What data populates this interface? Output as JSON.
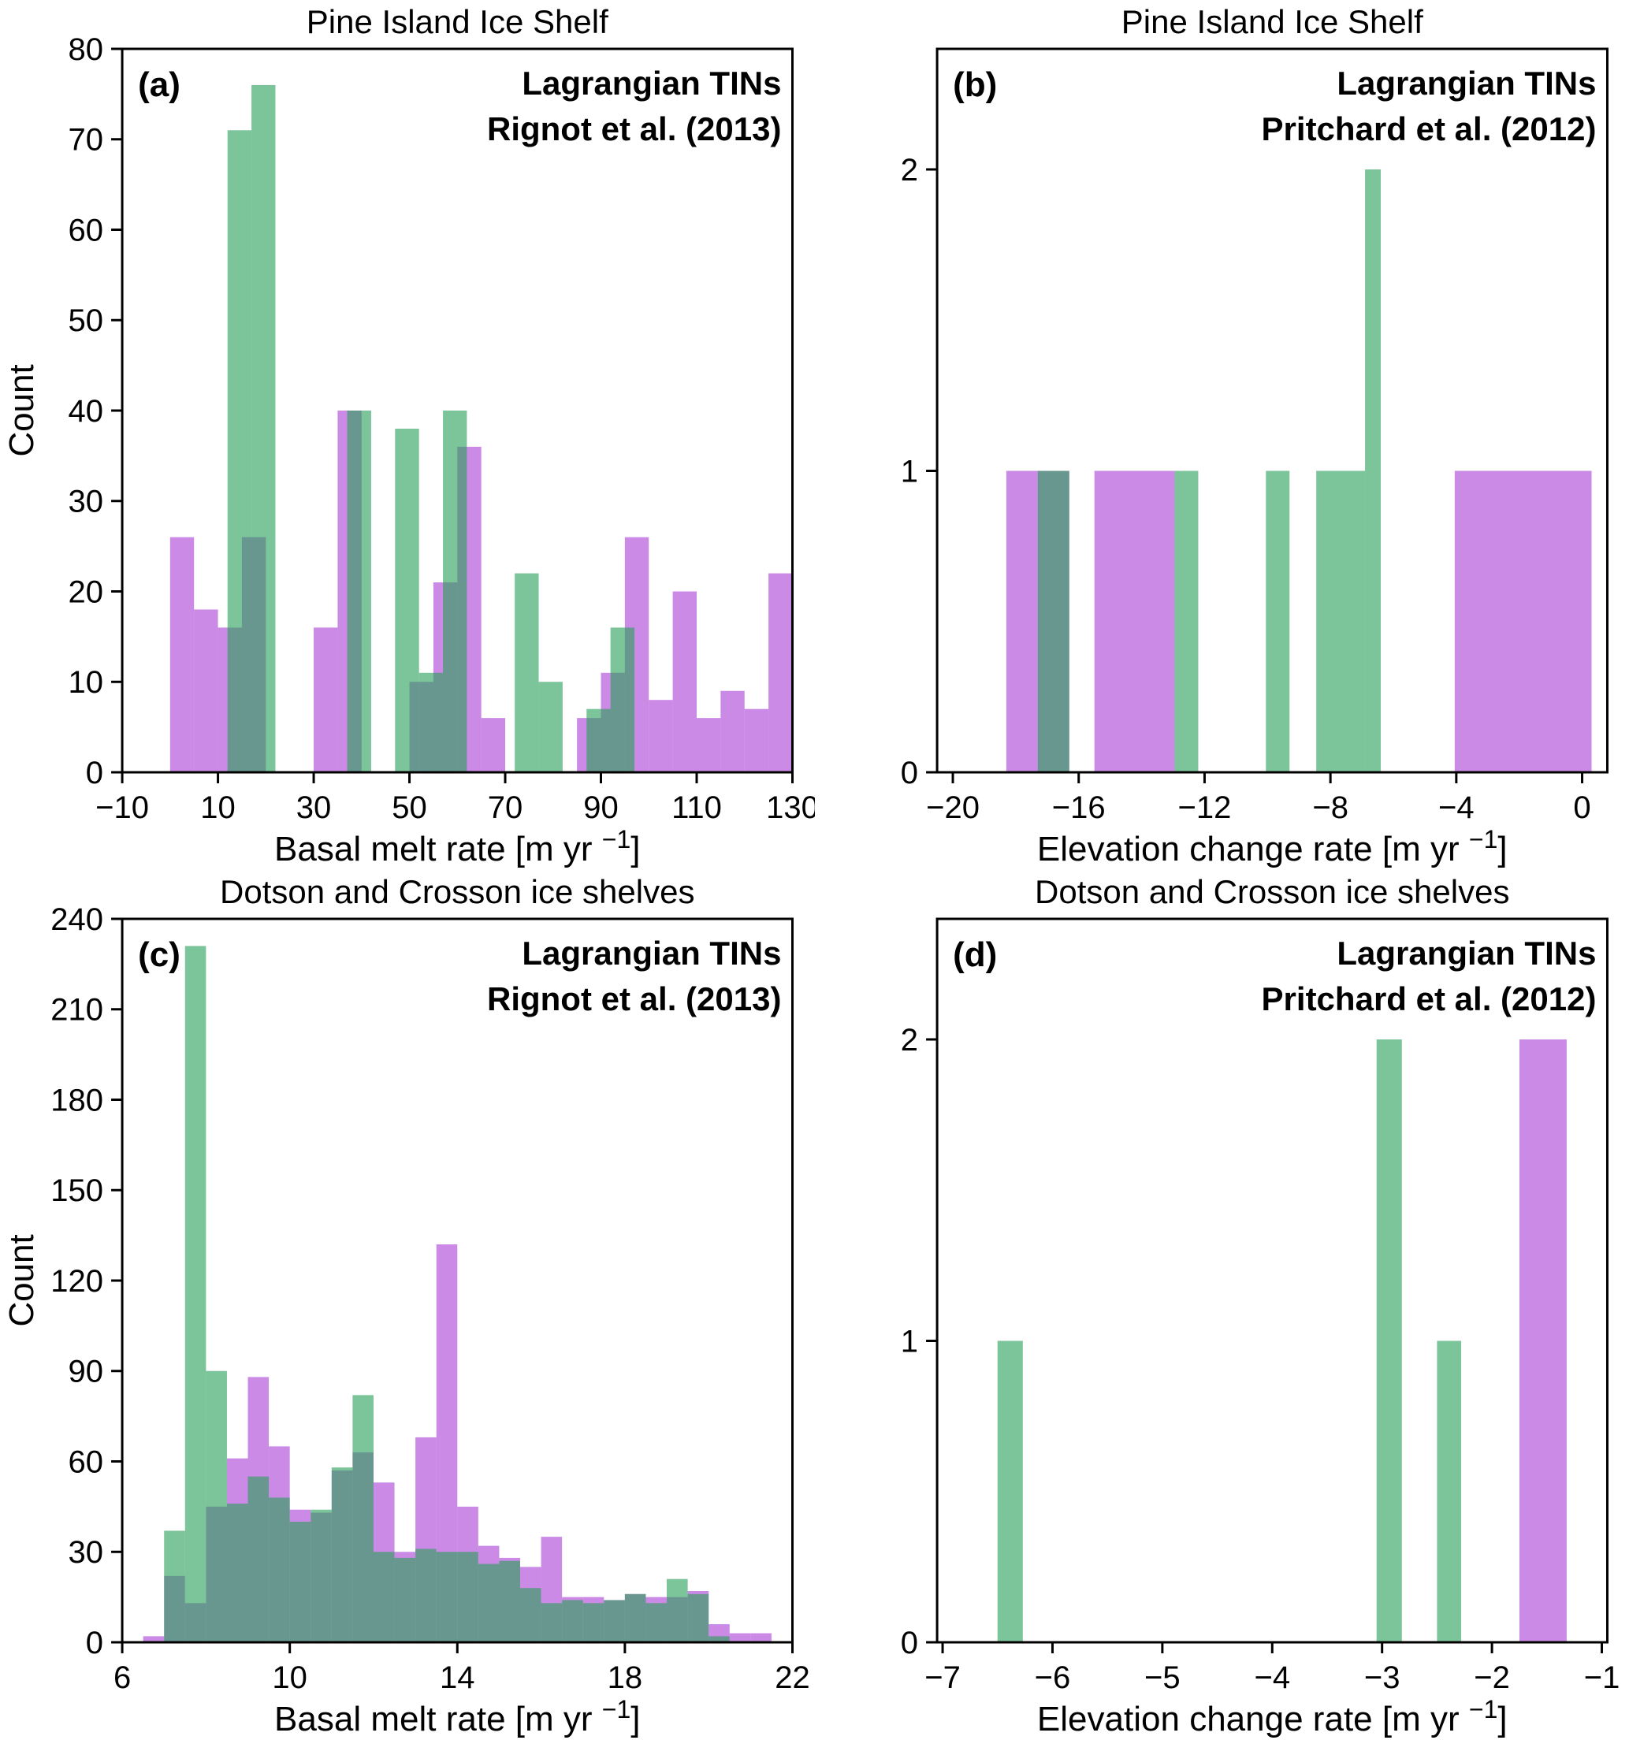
{
  "figure": {
    "colors": {
      "purple_bar": "#AB42D6",
      "green_bar": "#2CA05A",
      "bar_alpha": 0.62,
      "purple_legend_text": "#A93BD6",
      "green_legend_text": "#2EA568",
      "axis": "#000000",
      "background": "#FFFFFF"
    }
  },
  "chart_data": [
    {
      "panel": "a",
      "type": "bar",
      "title": "Pine Island Ice Shelf",
      "letter": "(a)",
      "xlabel_pre": "Basal melt rate [m yr ",
      "xlabel_sup": "−1",
      "xlabel_post": "]",
      "ylabel": "Count",
      "xlim": [
        -10,
        130
      ],
      "ylim": [
        0,
        80
      ],
      "xticks": [
        -10,
        10,
        30,
        50,
        70,
        90,
        110,
        130
      ],
      "yticks": [
        0,
        10,
        20,
        30,
        40,
        50,
        60,
        70,
        80
      ],
      "legend": [
        {
          "label": "Lagrangian TINs",
          "series": "purple"
        },
        {
          "label": "Rignot et al. (2013)",
          "series": "green"
        }
      ],
      "series": [
        {
          "name": "Lagrangian TINs",
          "color": "purple",
          "bins": {
            "start": 0,
            "width": 5,
            "counts": [
              26,
              18,
              16,
              26,
              0,
              0,
              16,
              40,
              0,
              0,
              10,
              21,
              36,
              6,
              0,
              0,
              0,
              6,
              11,
              26,
              8,
              20,
              6,
              9,
              7,
              22
            ]
          }
        },
        {
          "name": "Rignot et al. (2013)",
          "color": "green",
          "bins": {
            "start": 12,
            "width": 5,
            "counts": [
              71,
              76,
              0,
              0,
              0,
              40,
              0,
              38,
              11,
              40,
              0,
              0,
              22,
              10,
              0,
              7,
              16
            ]
          }
        }
      ]
    },
    {
      "panel": "b",
      "type": "bar",
      "title": "Pine Island Ice Shelf",
      "letter": "(b)",
      "xlabel_pre": "Elevation change rate [m yr ",
      "xlabel_sup": "−1",
      "xlabel_post": "]",
      "ylabel": "",
      "xlim": [
        -20.5,
        0.8
      ],
      "ylim": [
        0,
        2.4
      ],
      "xticks": [
        -20,
        -16,
        -12,
        -8,
        -4,
        0
      ],
      "yticks": [
        0,
        1,
        2
      ],
      "legend": [
        {
          "label": "Lagrangian TINs",
          "series": "purple"
        },
        {
          "label": "Pritchard et al. (2012)",
          "series": "green"
        }
      ],
      "series": [
        {
          "name": "Lagrangian TINs",
          "color": "purple",
          "bars": [
            [
              -18.3,
              -16.3,
              1
            ],
            [
              -15.5,
              -12.95,
              1
            ],
            [
              -4.05,
              0.3,
              1
            ]
          ]
        },
        {
          "name": "Pritchard et al. (2012)",
          "color": "green",
          "bars": [
            [
              -17.3,
              -16.3,
              1
            ],
            [
              -12.95,
              -12.2,
              1
            ],
            [
              -10.05,
              -9.3,
              1
            ],
            [
              -8.45,
              -6.9,
              1
            ],
            [
              -6.9,
              -6.4,
              2
            ]
          ]
        }
      ]
    },
    {
      "panel": "c",
      "type": "bar",
      "title": "Dotson and Crosson ice shelves",
      "letter": "(c)",
      "xlabel_pre": "Basal melt rate [m yr ",
      "xlabel_sup": "−1",
      "xlabel_post": "]",
      "ylabel": "Count",
      "xlim": [
        6,
        22
      ],
      "ylim": [
        0,
        240
      ],
      "xticks": [
        6,
        10,
        14,
        18,
        22
      ],
      "yticks": [
        0,
        30,
        60,
        90,
        120,
        150,
        180,
        210,
        240
      ],
      "legend": [
        {
          "label": "Lagrangian TINs",
          "series": "purple"
        },
        {
          "label": "Rignot et al. (2013)",
          "series": "green"
        }
      ],
      "series": [
        {
          "name": "Lagrangian TINs",
          "color": "purple",
          "bins": {
            "start": 6.5,
            "width": 0.5,
            "counts": [
              2,
              22,
              13,
              45,
              61,
              88,
              65,
              44,
              43,
              57,
              63,
              53,
              30,
              68,
              132,
              45,
              32,
              28,
              25,
              35,
              15,
              15,
              14,
              16,
              15,
              15,
              17,
              6,
              3,
              3
            ]
          }
        },
        {
          "name": "Rignot et al. (2013)",
          "color": "green",
          "bins": {
            "start": 7.0,
            "width": 0.5,
            "counts": [
              37,
              231,
              90,
              46,
              55,
              48,
              40,
              44,
              58,
              82,
              30,
              28,
              31,
              30,
              30,
              26,
              27,
              18,
              13,
              14,
              13,
              14,
              16,
              13,
              21,
              16,
              2
            ]
          }
        }
      ]
    },
    {
      "panel": "d",
      "type": "bar",
      "title": "Dotson and Crosson ice shelves",
      "letter": "(d)",
      "xlabel_pre": "Elevation change rate [m yr ",
      "xlabel_sup": "−1",
      "xlabel_post": "]",
      "ylabel": "",
      "xlim": [
        -7.05,
        -0.95
      ],
      "ylim": [
        0,
        2.4
      ],
      "xticks": [
        -7,
        -6,
        -5,
        -4,
        -3,
        -2,
        -1
      ],
      "yticks": [
        0,
        1,
        2
      ],
      "legend": [
        {
          "label": "Lagrangian TINs",
          "series": "purple"
        },
        {
          "label": "Pritchard et al. (2012)",
          "series": "green"
        }
      ],
      "series": [
        {
          "name": "Lagrangian TINs",
          "color": "purple",
          "bars": [
            [
              -1.75,
              -1.32,
              2
            ]
          ]
        },
        {
          "name": "Pritchard et al. (2012)",
          "color": "green",
          "bars": [
            [
              -6.5,
              -6.27,
              1
            ],
            [
              -3.05,
              -2.82,
              2
            ],
            [
              -2.5,
              -2.28,
              1
            ]
          ]
        }
      ]
    }
  ]
}
